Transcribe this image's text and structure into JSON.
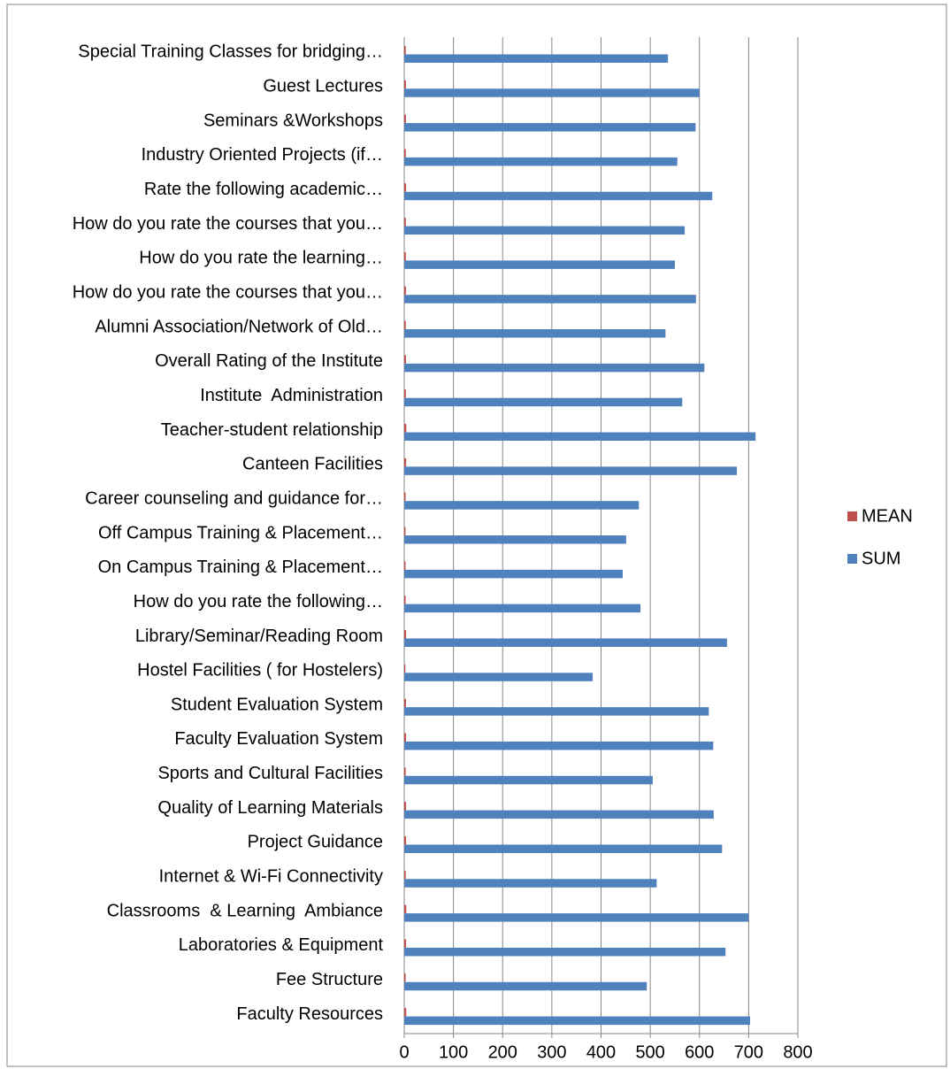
{
  "chart_data": {
    "type": "bar",
    "orientation": "horizontal",
    "categories": [
      "Faculty Resources",
      "Fee Structure",
      "Laboratories & Equipment",
      "Classrooms  & Learning  Ambiance",
      "Internet & Wi-Fi Connectivity",
      "Project Guidance",
      "Quality of Learning Materials",
      "Sports and Cultural Facilities",
      "Faculty Evaluation System",
      "Student Evaluation System",
      "Hostel Facilities ( for Hostelers)",
      "Library/Seminar/Reading Room",
      "How do you rate the following…",
      "On Campus Training & Placement…",
      "Off Campus Training & Placement…",
      "Career counseling and guidance for…",
      "Canteen Facilities",
      "Teacher-student relationship",
      "Institute  Administration",
      "Overall Rating of the Institute",
      "Alumni Association/Network of Old…",
      "How do you rate the courses that you…",
      "How do you rate the learning…",
      "How do you rate the courses that you…",
      "Rate the following academic…",
      "Industry Oriented Projects (if…",
      "Seminars &Workshops",
      "Guest Lectures",
      "Special Training Classes for bridging…"
    ],
    "series": [
      {
        "name": "MEAN",
        "color": "#c0504d",
        "values": [
          4.1,
          2.9,
          3.8,
          4.1,
          3.0,
          3.8,
          3.7,
          3.0,
          3.7,
          3.6,
          2.2,
          3.8,
          2.8,
          2.6,
          2.6,
          2.8,
          3.9,
          4.2,
          3.3,
          3.6,
          3.1,
          3.5,
          3.2,
          3.3,
          3.7,
          3.2,
          3.5,
          3.5,
          3.1
        ]
      },
      {
        "name": "SUM",
        "color": "#4f81bd",
        "values": [
          703,
          493,
          653,
          700,
          513,
          646,
          629,
          505,
          628,
          619,
          383,
          656,
          480,
          444,
          451,
          477,
          676,
          714,
          565,
          610,
          531,
          593,
          550,
          570,
          626,
          555,
          592,
          600,
          536
        ]
      }
    ],
    "xlim": [
      0,
      800
    ],
    "xticks": [
      0,
      100,
      200,
      300,
      400,
      500,
      600,
      700,
      800
    ],
    "grid": true,
    "legend": "right"
  }
}
